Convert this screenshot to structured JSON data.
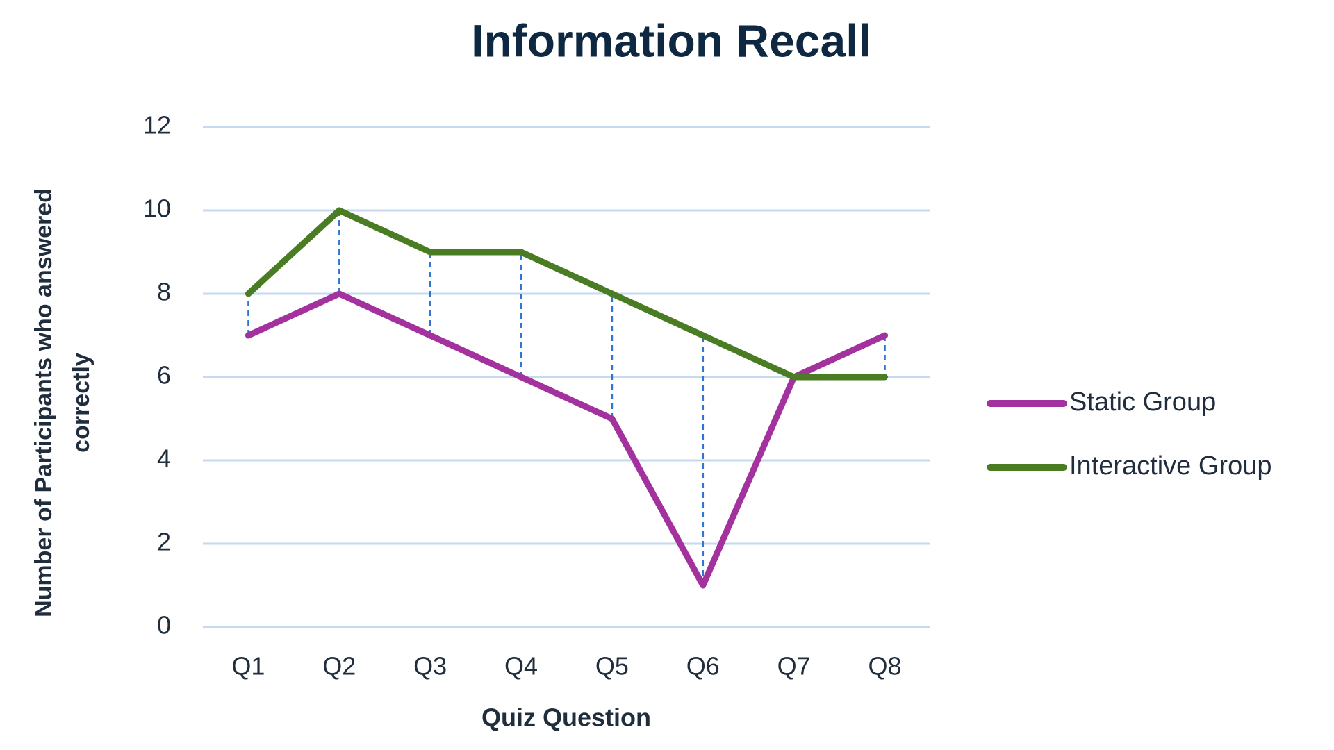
{
  "chart_data": {
    "type": "line",
    "title": "Information Recall",
    "x_label": "Quiz Question",
    "y_label": "Number of Participants who answered correctly",
    "categories": [
      "Q1",
      "Q2",
      "Q3",
      "Q4",
      "Q5",
      "Q6",
      "Q7",
      "Q8"
    ],
    "series": [
      {
        "name": "Static Group",
        "color": "#a3329e",
        "values": [
          7,
          8,
          7,
          6,
          5,
          1,
          6,
          7
        ]
      },
      {
        "name": "Interactive Group",
        "color": "#4a7c23",
        "values": [
          8,
          10,
          9,
          9,
          8,
          7,
          6,
          6
        ]
      }
    ],
    "ylim": [
      0,
      12
    ],
    "yticks": [
      0,
      2,
      4,
      6,
      8,
      10,
      12
    ],
    "grid": true,
    "high_low_lines": true,
    "legend": "right"
  }
}
